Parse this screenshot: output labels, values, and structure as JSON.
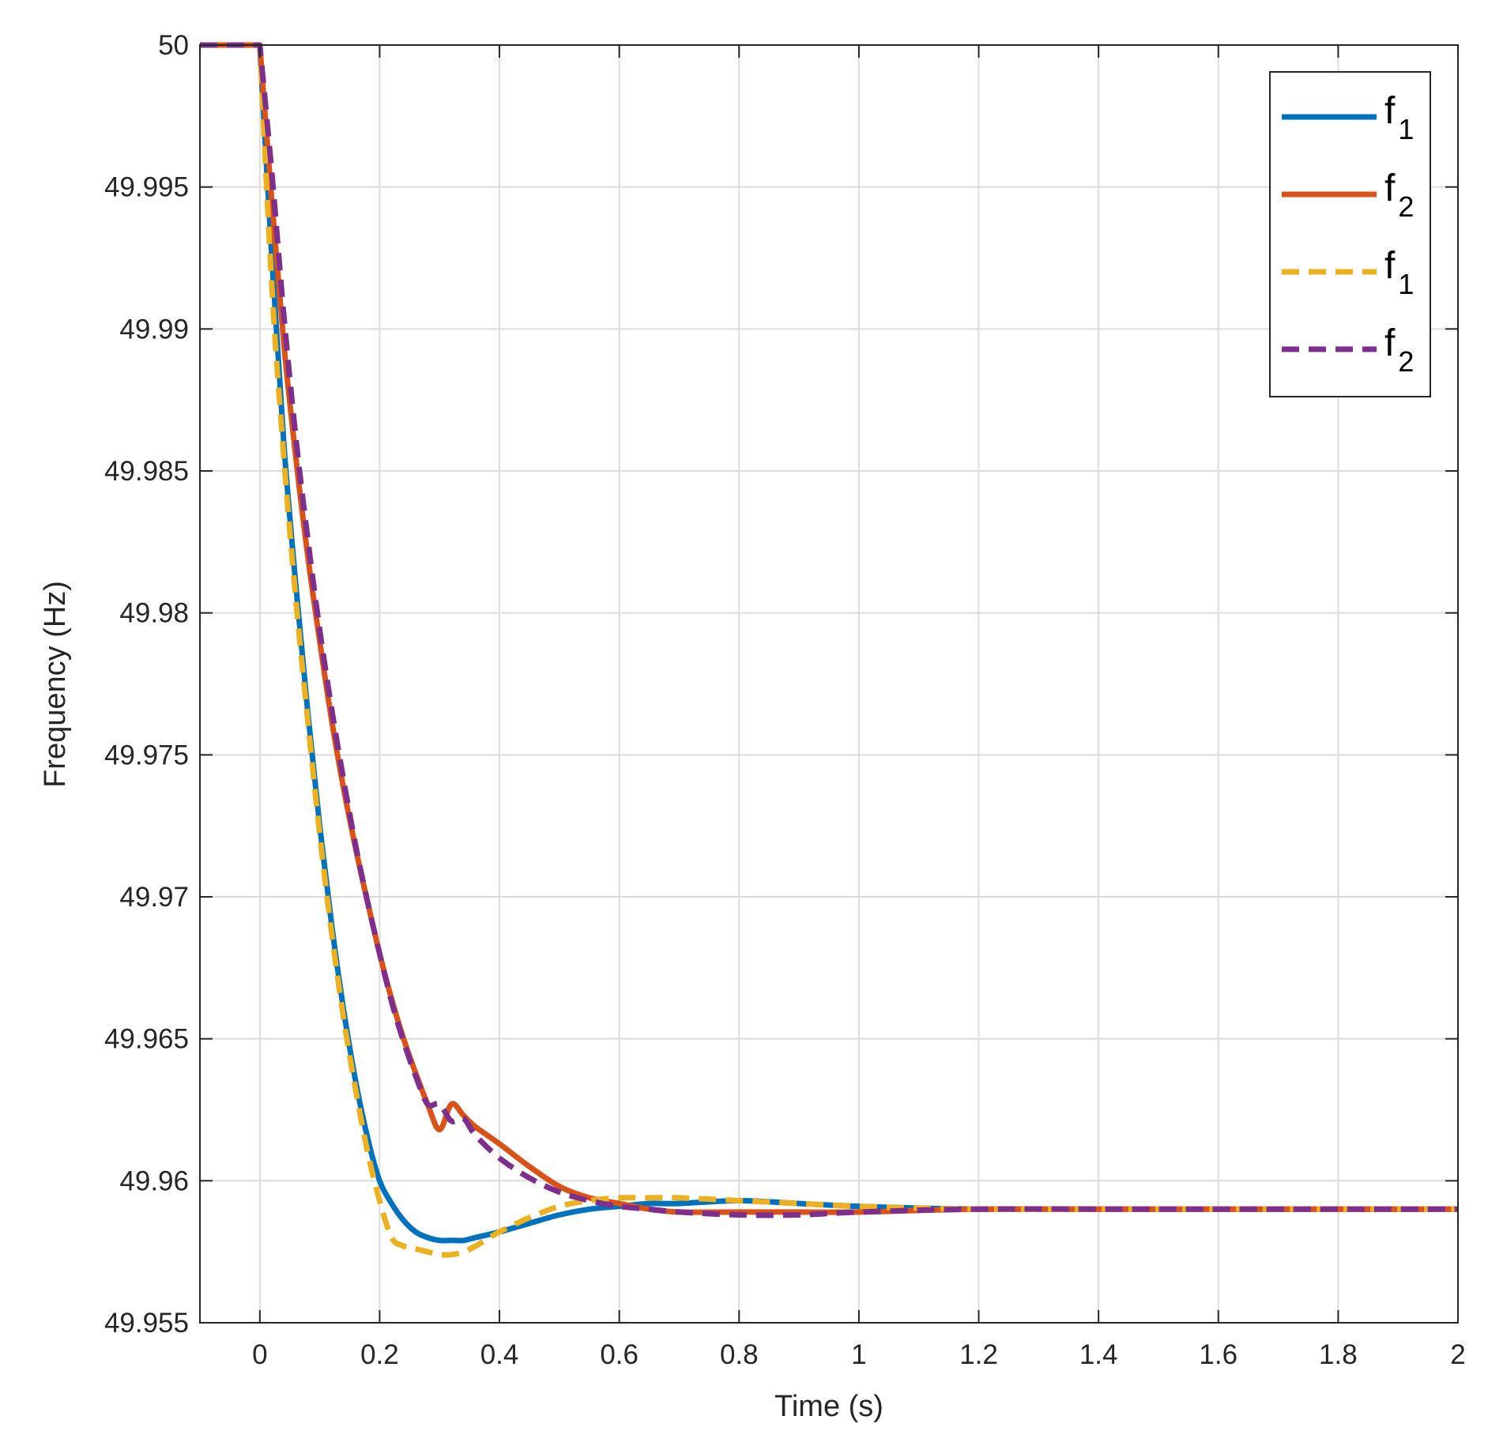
{
  "chart_data": {
    "type": "line",
    "title": "",
    "xlabel": "Time (s)",
    "ylabel": "Frequency (Hz)",
    "xlim": [
      -0.1,
      2
    ],
    "ylim": [
      49.955,
      50
    ],
    "xticks": [
      0,
      0.2,
      0.4,
      0.6,
      0.8,
      1,
      1.2,
      1.4,
      1.6,
      1.8,
      2
    ],
    "xtick_labels": [
      "0",
      "0.2",
      "0.4",
      "0.6",
      "0.8",
      "1",
      "1.2",
      "1.4",
      "1.6",
      "1.8",
      "2"
    ],
    "yticks": [
      49.955,
      49.96,
      49.965,
      49.97,
      49.975,
      49.98,
      49.985,
      49.99,
      49.995,
      50
    ],
    "ytick_labels": [
      "49.955",
      "49.96",
      "49.965",
      "49.97",
      "49.975",
      "49.98",
      "49.985",
      "49.99",
      "49.995",
      "50"
    ],
    "grid": true,
    "legend_position": "top-right",
    "series": [
      {
        "label_main": "f",
        "label_sub": "1",
        "color": "#0072BD",
        "style": "solid",
        "x": [
          -0.1,
          0,
          0.02,
          0.04,
          0.06,
          0.08,
          0.1,
          0.12,
          0.14,
          0.16,
          0.18,
          0.2,
          0.22,
          0.24,
          0.26,
          0.28,
          0.3,
          0.32,
          0.34,
          0.36,
          0.4,
          0.45,
          0.5,
          0.55,
          0.6,
          0.65,
          0.7,
          0.8,
          0.9,
          1.0,
          1.2,
          1.5,
          2.0
        ],
        "y": [
          50.0,
          50.0,
          49.9925,
          49.986,
          49.981,
          49.9765,
          49.9725,
          49.969,
          49.966,
          49.9635,
          49.9615,
          49.96,
          49.9592,
          49.9586,
          49.9582,
          49.958,
          49.9579,
          49.9579,
          49.9579,
          49.958,
          49.9582,
          49.9585,
          49.9588,
          49.959,
          49.9591,
          49.9592,
          49.9592,
          49.9593,
          49.9592,
          49.9591,
          49.959,
          49.959,
          49.959
        ]
      },
      {
        "label_main": "f",
        "label_sub": "2",
        "color": "#D95319",
        "style": "solid",
        "x": [
          -0.1,
          0,
          0.02,
          0.04,
          0.06,
          0.08,
          0.1,
          0.12,
          0.14,
          0.16,
          0.18,
          0.2,
          0.22,
          0.24,
          0.26,
          0.28,
          0.3,
          0.32,
          0.34,
          0.36,
          0.4,
          0.45,
          0.5,
          0.55,
          0.6,
          0.65,
          0.7,
          0.8,
          0.9,
          1.0,
          1.2,
          1.5,
          2.0
        ],
        "y": [
          50.0,
          50.0,
          49.9945,
          49.9895,
          49.9855,
          49.982,
          49.979,
          49.9762,
          49.9738,
          49.9717,
          49.9698,
          49.968,
          49.9664,
          49.965,
          49.9638,
          49.9627,
          49.9618,
          49.9627,
          49.9623,
          49.9619,
          49.9613,
          49.9605,
          49.9598,
          49.9594,
          49.9592,
          49.959,
          49.9589,
          49.9589,
          49.9589,
          49.9589,
          49.959,
          49.959,
          49.959
        ]
      },
      {
        "label_main": "f",
        "label_sub": "1",
        "color": "#EDB120",
        "style": "dashed",
        "x": [
          -0.1,
          0,
          0.02,
          0.04,
          0.06,
          0.08,
          0.1,
          0.12,
          0.14,
          0.16,
          0.18,
          0.2,
          0.22,
          0.24,
          0.26,
          0.28,
          0.3,
          0.32,
          0.34,
          0.36,
          0.4,
          0.45,
          0.5,
          0.55,
          0.6,
          0.65,
          0.7,
          0.8,
          0.9,
          1.0,
          1.2,
          1.5,
          2.0
        ],
        "y": [
          50.0,
          50.0,
          49.9915,
          49.9855,
          49.9805,
          49.9762,
          49.9722,
          49.9687,
          49.9657,
          49.9632,
          49.961,
          49.9593,
          49.958,
          49.9577,
          49.9576,
          49.9575,
          49.9574,
          49.9574,
          49.9575,
          49.9577,
          49.9582,
          49.9587,
          49.9591,
          49.9593,
          49.9594,
          49.9594,
          49.9594,
          49.9593,
          49.9592,
          49.9591,
          49.959,
          49.959,
          49.959
        ]
      },
      {
        "label_main": "f",
        "label_sub": "2",
        "color": "#7E2F8E",
        "style": "dashed",
        "x": [
          -0.1,
          0,
          0.02,
          0.04,
          0.06,
          0.08,
          0.1,
          0.12,
          0.14,
          0.16,
          0.18,
          0.2,
          0.22,
          0.24,
          0.26,
          0.28,
          0.3,
          0.32,
          0.34,
          0.36,
          0.4,
          0.45,
          0.5,
          0.55,
          0.6,
          0.65,
          0.7,
          0.8,
          0.9,
          1.0,
          1.2,
          1.5,
          2.0
        ],
        "y": [
          50.0,
          50.0,
          49.9955,
          49.9905,
          49.9862,
          49.9826,
          49.9794,
          49.9766,
          49.9741,
          49.9718,
          49.9698,
          49.968,
          49.9663,
          49.9649,
          49.9637,
          49.9627,
          49.9627,
          49.9621,
          49.9622,
          49.9616,
          49.9608,
          49.9601,
          49.9596,
          49.9593,
          49.9591,
          49.959,
          49.9589,
          49.9588,
          49.9588,
          49.9589,
          49.959,
          49.959,
          49.959
        ]
      }
    ]
  }
}
